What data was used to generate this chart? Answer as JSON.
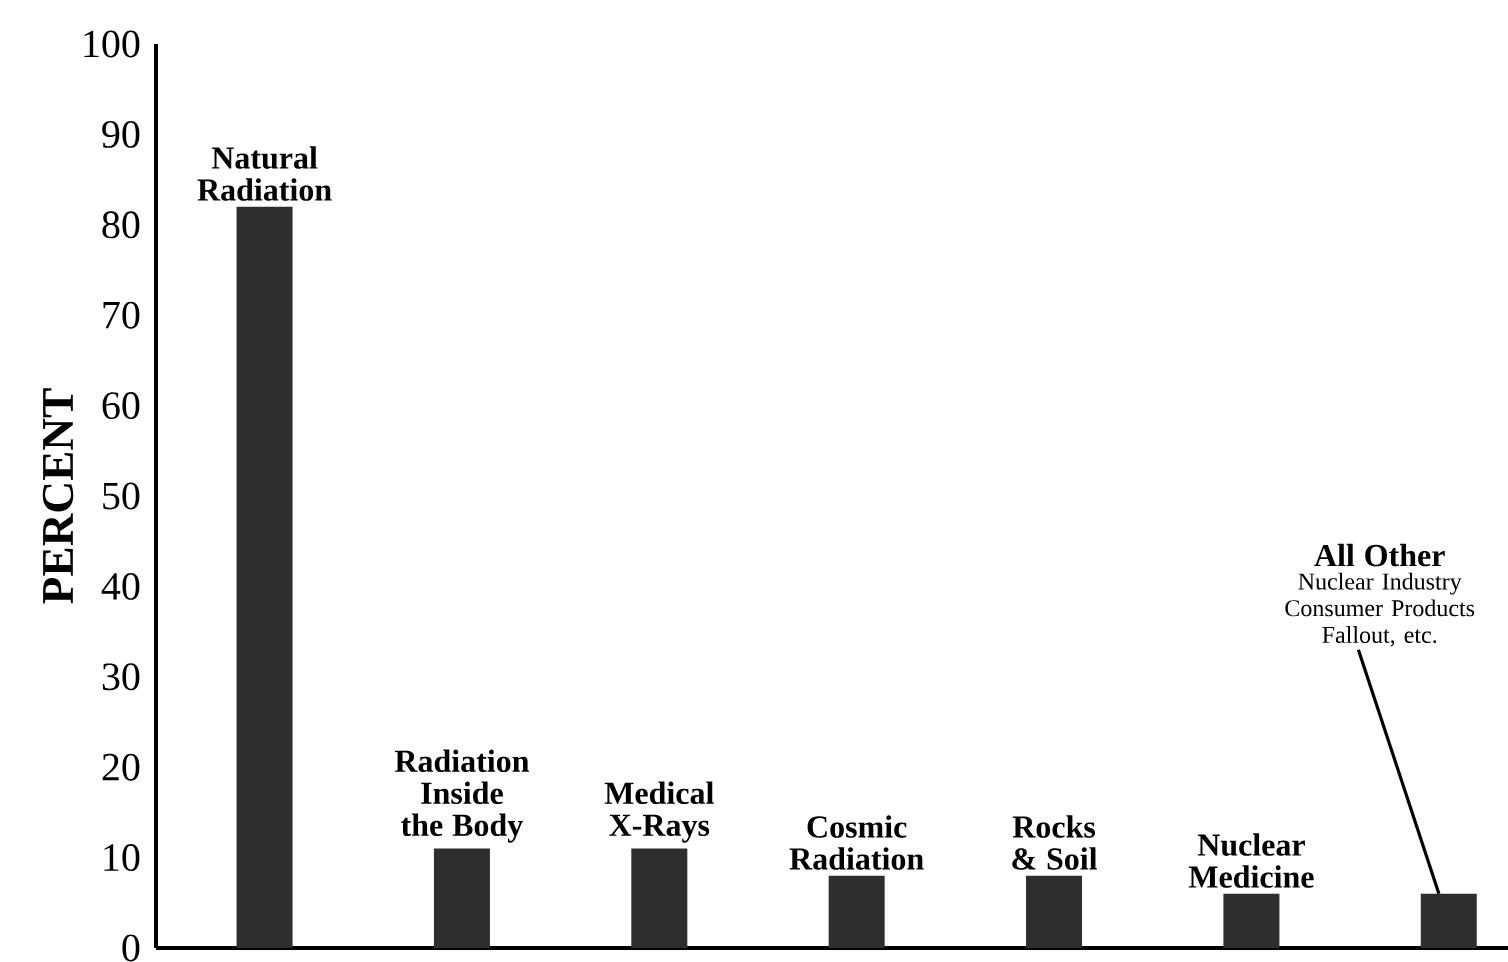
{
  "chart_data": {
    "type": "bar",
    "ylabel": "PERCENT",
    "categories": [
      "Natural Radiation",
      "Radiation Inside the Body",
      "Medical X-Rays",
      "Cosmic Radiation",
      "Rocks & Soil",
      "Nuclear Medicine",
      "All Other"
    ],
    "values": [
      82,
      11,
      11,
      8,
      8,
      6,
      6
    ],
    "color": "#2e2e2e",
    "ylim": [
      0,
      100
    ],
    "yticks": [
      0,
      10,
      20,
      30,
      40,
      50,
      60,
      70,
      80,
      90,
      100
    ],
    "annotations": [
      {
        "text": "Nuclear Industry Consumer Products Fallout, etc.",
        "x": "All Other",
        "y": 6
      }
    ]
  }
}
